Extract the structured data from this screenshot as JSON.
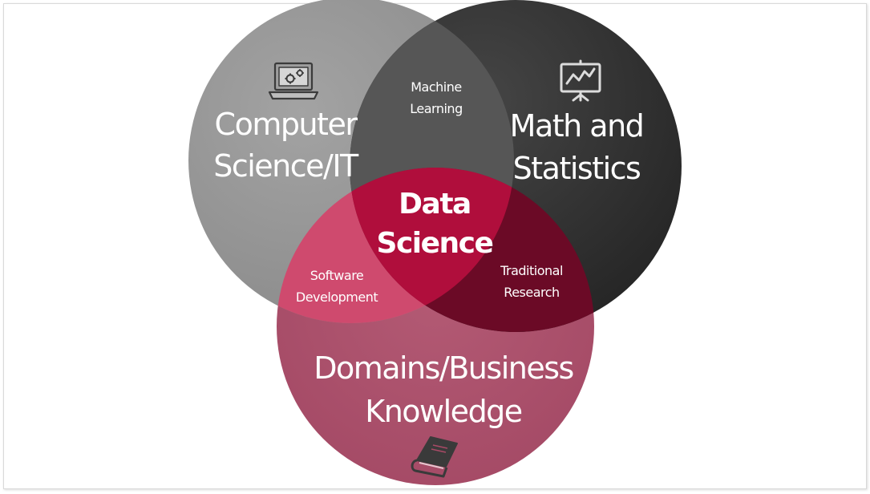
{
  "diagram": {
    "sets": {
      "computer_science": {
        "line1": "Computer",
        "line2": "Science/IT",
        "icon": "laptop-gears-icon",
        "color": "#8c8c8c"
      },
      "math_statistics": {
        "line1": "Math and",
        "line2": "Statistics",
        "icon": "presentation-chart-icon",
        "color": "#2b2b2b"
      },
      "domains_business": {
        "line1": "Domains/Business",
        "line2": "Knowledge",
        "icon": "book-icon",
        "color": "#a84a66"
      }
    },
    "intersections": {
      "machine_learning": {
        "line1": "Machine",
        "line2": "Learning",
        "color": "#555555"
      },
      "software_development": {
        "line1": "Software",
        "line2": "Development",
        "color": "#cf4a6e"
      },
      "traditional_research": {
        "line1": "Traditional",
        "line2": "Research",
        "color": "#6b0a26"
      },
      "data_science": {
        "line1": "Data",
        "line2": "Science",
        "color": "#b00e3c"
      }
    }
  }
}
